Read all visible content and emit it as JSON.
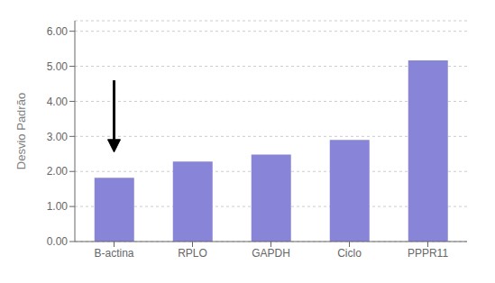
{
  "chart_data": {
    "type": "bar",
    "categories": [
      "B-actina",
      "RPLO",
      "GAPDH",
      "Ciclo",
      "PPPR11"
    ],
    "values": [
      1.82,
      2.28,
      2.48,
      2.9,
      5.17
    ],
    "ylabel": "Desvio Padrão",
    "ylim": [
      0.0,
      6.3
    ],
    "yticks": [
      {
        "value": 0,
        "label": "0.00"
      },
      {
        "value": 1,
        "label": "1.00"
      },
      {
        "value": 2,
        "label": "2.00"
      },
      {
        "value": 3,
        "label": "3.00"
      },
      {
        "value": 4,
        "label": "4.00"
      },
      {
        "value": 5,
        "label": "5.00"
      },
      {
        "value": 6,
        "label": "6.00"
      }
    ],
    "grid": true,
    "annotations": [
      {
        "type": "arrow",
        "x": "B-actina",
        "y_start": 4.6,
        "y_end": 2.55,
        "color": "black"
      }
    ]
  }
}
